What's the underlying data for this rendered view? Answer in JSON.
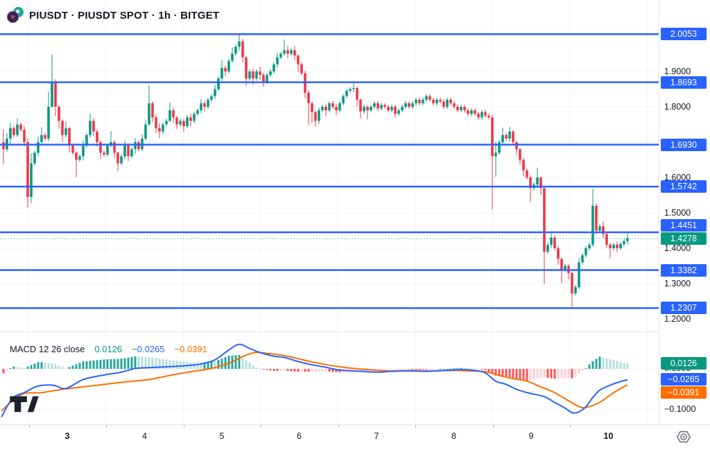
{
  "header": {
    "symbol_title": "PIUSDT · PIUSDT SPOT · 1h · BITGET",
    "logo_icon": "pi-coin-icon"
  },
  "colors": {
    "up": "#089981",
    "down": "#f23645",
    "level_line": "#2962ff",
    "grid": "#f0f3fa",
    "text": "#131722",
    "axis_border": "#e0e3eb",
    "macd_line": "#2962ff",
    "signal_line": "#ff6d00",
    "hist_pos": "#26a69a",
    "hist_pos_weak": "#b2dfdb",
    "hist_neg": "#ff5252",
    "hist_neg_weak": "#ffcdd2",
    "current_price": "#089981",
    "badge_text": "#ffffff"
  },
  "chart_data": [
    {
      "type": "candlestick",
      "pane": "price",
      "interval": "1h",
      "exchange": "BITGET",
      "symbol": "PIUSDT",
      "price_axis_ticks": [
        {
          "label": "1.9000",
          "price": 1.9
        },
        {
          "label": "1.8000",
          "price": 1.8
        },
        {
          "label": "1.6000",
          "price": 1.6
        },
        {
          "label": "1.5000",
          "price": 1.5
        },
        {
          "label": "1.4000",
          "price": 1.4
        },
        {
          "label": "1.3000",
          "price": 1.3
        },
        {
          "label": "1.2000",
          "price": 1.2
        }
      ],
      "level_lines": [
        {
          "label": "2.0053",
          "price": 2.0053
        },
        {
          "label": "1.8693",
          "price": 1.8693
        },
        {
          "label": "1.6930",
          "price": 1.693
        },
        {
          "label": "1.5742",
          "price": 1.5742
        },
        {
          "label": "1.4451",
          "price": 1.4451
        },
        {
          "label": "1.3382",
          "price": 1.3382
        },
        {
          "label": "1.2307",
          "price": 1.2307
        }
      ],
      "current_price": {
        "label": "1.4278",
        "price": 1.4278
      },
      "time_axis_labels": [
        {
          "label": "3",
          "bold": true
        },
        {
          "label": "4",
          "bold": false
        },
        {
          "label": "5",
          "bold": false
        },
        {
          "label": "6",
          "bold": false
        },
        {
          "label": "7",
          "bold": false
        },
        {
          "label": "8",
          "bold": false
        },
        {
          "label": "9",
          "bold": false
        },
        {
          "label": "10",
          "bold": true
        }
      ],
      "first_open": 1.7,
      "candles": [
        [
          1.68,
          1.735,
          1.638
        ],
        [
          1.71,
          1.725,
          1.672
        ],
        [
          1.74,
          1.755,
          1.695
        ],
        1.72,
        [
          1.75,
          1.768,
          1.715
        ],
        1.735,
        [
          1.7,
          1.745,
          1.688
        ],
        [
          1.545,
          1.71,
          1.515
        ],
        [
          1.64,
          1.668,
          1.528
        ],
        1.67,
        [
          1.7,
          1.716,
          1.66
        ],
        [
          1.72,
          1.742,
          1.695
        ],
        1.71,
        [
          1.8,
          1.843,
          1.703
        ],
        [
          1.87,
          1.947,
          1.798
        ],
        [
          1.8,
          1.878,
          1.775
        ],
        [
          1.76,
          1.803,
          1.738
        ],
        [
          1.72,
          1.764,
          1.7
        ],
        [
          1.74,
          1.758,
          1.712
        ],
        [
          1.69,
          1.742,
          1.672
        ],
        1.67,
        [
          1.65,
          1.675,
          1.601
        ],
        1.66,
        [
          1.69,
          1.705,
          1.648
        ],
        1.72,
        [
          1.76,
          1.781,
          1.713
        ],
        [
          1.73,
          1.768,
          1.718
        ],
        [
          1.7,
          1.736,
          1.688
        ],
        [
          1.67,
          1.705,
          1.653
        ],
        1.665,
        1.69,
        [
          1.7,
          1.731,
          1.685
        ],
        [
          1.67,
          1.706,
          1.655
        ],
        [
          1.64,
          1.673,
          1.618
        ],
        1.66,
        [
          1.69,
          1.703,
          1.652
        ],
        [
          1.66,
          1.697,
          1.647
        ],
        1.68,
        [
          1.7,
          1.712,
          1.668
        ],
        1.68,
        [
          1.71,
          1.722,
          1.675
        ],
        [
          1.75,
          1.762,
          1.706
        ],
        [
          1.81,
          1.861,
          1.746
        ],
        [
          1.77,
          1.815,
          1.757
        ],
        [
          1.74,
          1.778,
          1.726
        ],
        [
          1.73,
          1.753,
          1.711
        ],
        1.75,
        1.76,
        [
          1.79,
          1.812,
          1.757
        ],
        [
          1.77,
          1.798,
          1.754
        ],
        [
          1.75,
          1.774,
          1.737
        ],
        1.76,
        [
          1.745,
          1.766,
          1.728
        ],
        1.77,
        [
          1.76,
          1.781,
          1.745
        ],
        1.78,
        1.79,
        [
          1.81,
          1.822,
          1.782
        ],
        [
          1.8,
          1.817,
          1.786
        ],
        1.82,
        1.83,
        [
          1.85,
          1.862,
          1.822
        ],
        1.88,
        [
          1.91,
          1.931,
          1.873
        ],
        [
          1.9,
          1.917,
          1.886
        ],
        1.93,
        [
          1.95,
          1.968,
          1.924
        ],
        1.97,
        [
          1.985,
          2.005,
          1.958
        ],
        [
          1.94,
          1.992,
          1.925
        ],
        [
          1.88,
          1.943,
          1.859
        ],
        1.9,
        [
          1.88,
          1.908,
          1.862
        ],
        1.9,
        [
          1.89,
          1.914,
          1.876
        ],
        [
          1.87,
          1.896,
          1.857
        ],
        1.89,
        1.9,
        1.92,
        [
          1.94,
          1.953,
          1.911
        ],
        1.95,
        [
          1.96,
          1.99,
          1.944
        ],
        [
          1.95,
          1.973,
          1.937
        ],
        1.96,
        [
          1.945,
          1.972,
          1.932
        ],
        [
          1.92,
          1.948,
          1.899
        ],
        1.895,
        [
          1.84,
          1.902,
          1.824
        ],
        [
          1.81,
          1.846,
          1.749
        ],
        [
          1.785,
          1.814,
          1.754
        ],
        [
          1.76,
          1.789,
          1.744
        ],
        [
          1.79,
          1.798,
          1.751
        ],
        1.8,
        [
          1.79,
          1.809,
          1.774
        ],
        1.81,
        1.8,
        [
          1.79,
          1.808,
          1.776
        ],
        1.81,
        1.83,
        1.845,
        1.85,
        [
          1.853,
          1.8685,
          1.841
        ],
        [
          1.82,
          1.857,
          1.801
        ],
        [
          1.787,
          1.823,
          1.768
        ],
        1.8,
        [
          1.79,
          1.804,
          1.764
        ],
        1.8,
        1.81,
        1.795,
        1.805,
        1.8,
        1.79,
        1.8,
        [
          1.78,
          1.806,
          1.77
        ],
        1.79,
        1.8,
        1.81,
        1.8,
        1.81,
        1.82,
        1.81,
        1.82,
        1.83,
        1.82,
        1.81,
        1.82,
        1.815,
        1.8,
        1.82,
        1.81,
        1.8,
        1.79,
        1.8,
        1.79,
        1.78,
        1.79,
        1.78,
        1.77,
        1.785,
        1.775,
        1.77,
        [
          1.66,
          1.778,
          1.51
        ],
        [
          1.67,
          1.701,
          1.602
        ],
        1.7,
        [
          1.72,
          1.741,
          1.69
        ],
        1.71,
        [
          1.73,
          1.743,
          1.701
        ],
        [
          1.7,
          1.734,
          1.69
        ],
        [
          1.68,
          1.703,
          1.664
        ],
        [
          1.65,
          1.683,
          1.638
        ],
        [
          1.62,
          1.656,
          1.603
        ],
        1.6,
        [
          1.57,
          1.606,
          1.531
        ],
        1.58,
        [
          1.6,
          1.628,
          1.571
        ],
        [
          1.57,
          1.602,
          1.551
        ],
        [
          1.39,
          1.572,
          1.298
        ],
        1.41,
        [
          1.43,
          1.447,
          1.401
        ],
        1.4,
        [
          1.37,
          1.406,
          1.353
        ],
        [
          1.34,
          1.373,
          1.301
        ],
        1.35,
        [
          1.33,
          1.356,
          1.312
        ],
        [
          1.272,
          1.334,
          1.232
        ],
        1.29,
        [
          1.36,
          1.371,
          1.284
        ],
        1.38,
        1.4,
        1.41,
        [
          1.52,
          1.568,
          1.404
        ],
        [
          1.45,
          1.527,
          1.441
        ],
        1.462,
        [
          1.44,
          1.476,
          1.429
        ],
        [
          1.41,
          1.446,
          1.401
        ],
        [
          1.4,
          1.416,
          1.371
        ],
        1.41,
        [
          1.4,
          1.419,
          1.389
        ],
        1.412,
        1.42,
        [
          1.428,
          1.446,
          1.411
        ]
      ]
    },
    {
      "type": "macd",
      "pane": "macd",
      "legend": {
        "title": "MACD 12 26 close",
        "hist_value": "0.0126",
        "macd_value": "−0.0265",
        "signal_value": "−0.0391"
      },
      "axis_ticks": [
        {
          "label": "0.0000",
          "value": 0
        },
        {
          "label": "−0.1000",
          "value": -0.1
        }
      ],
      "value_badges": [
        {
          "label": "0.0126",
          "value": 0.0126,
          "series": "hist",
          "fixed": true
        },
        {
          "label": "−0.0265",
          "value": -0.0265,
          "series": "macd",
          "fixed": true
        },
        {
          "label": "−0.0391",
          "value": -0.0391,
          "series": "signal",
          "fixed": false
        }
      ],
      "macd_line": [
        [
          2,
          -0.118
        ],
        [
          18,
          -0.072
        ],
        [
          35,
          -0.058
        ],
        [
          55,
          -0.042
        ],
        [
          77,
          -0.04
        ],
        [
          95,
          -0.048
        ],
        [
          120,
          -0.026
        ],
        [
          150,
          -0.015
        ],
        [
          175,
          -0.008
        ],
        [
          195,
          0.001
        ],
        [
          215,
          0.003
        ],
        [
          240,
          0.005
        ],
        [
          270,
          0.008
        ],
        [
          290,
          0.012
        ],
        [
          310,
          0.022
        ],
        [
          330,
          0.046
        ],
        [
          345,
          0.06
        ],
        [
          360,
          0.05
        ],
        [
          375,
          0.04
        ],
        [
          395,
          0.031
        ],
        [
          410,
          0.028
        ],
        [
          430,
          0.018
        ],
        [
          450,
          0.01
        ],
        [
          470,
          0.004
        ],
        [
          490,
          -0.003
        ],
        [
          520,
          -0.006
        ],
        [
          545,
          -0.008
        ],
        [
          565,
          -0.006
        ],
        [
          590,
          -0.005
        ],
        [
          615,
          -0.006
        ],
        [
          640,
          -0.004
        ],
        [
          665,
          -0.002
        ],
        [
          685,
          -0.004
        ],
        [
          700,
          -0.01
        ],
        [
          715,
          -0.03
        ],
        [
          730,
          -0.038
        ],
        [
          745,
          -0.05
        ],
        [
          760,
          -0.058
        ],
        [
          785,
          -0.068
        ],
        [
          800,
          -0.082
        ],
        [
          815,
          -0.096
        ],
        [
          828,
          -0.108
        ],
        [
          843,
          -0.096
        ],
        [
          855,
          -0.07
        ],
        [
          865,
          -0.052
        ],
        [
          880,
          -0.04
        ],
        [
          893,
          -0.032
        ],
        [
          905,
          -0.0265
        ]
      ],
      "signal_line": [
        [
          2,
          -0.103
        ],
        [
          18,
          -0.078
        ],
        [
          35,
          -0.06
        ],
        [
          60,
          -0.058
        ],
        [
          90,
          -0.05
        ],
        [
          120,
          -0.044
        ],
        [
          150,
          -0.038
        ],
        [
          180,
          -0.032
        ],
        [
          215,
          -0.026
        ],
        [
          245,
          -0.016
        ],
        [
          275,
          -0.007
        ],
        [
          305,
          0.001
        ],
        [
          330,
          0.014
        ],
        [
          350,
          0.03
        ],
        [
          368,
          0.04
        ],
        [
          385,
          0.038
        ],
        [
          405,
          0.034
        ],
        [
          425,
          0.027
        ],
        [
          450,
          0.017
        ],
        [
          475,
          0.009
        ],
        [
          500,
          0.003
        ],
        [
          530,
          -0.002
        ],
        [
          560,
          -0.005
        ],
        [
          590,
          -0.004
        ],
        [
          620,
          -0.005
        ],
        [
          650,
          -0.004
        ],
        [
          680,
          -0.005
        ],
        [
          700,
          -0.007
        ],
        [
          720,
          -0.016
        ],
        [
          740,
          -0.024
        ],
        [
          760,
          -0.03
        ],
        [
          780,
          -0.044
        ],
        [
          800,
          -0.058
        ],
        [
          820,
          -0.078
        ],
        [
          838,
          -0.094
        ],
        [
          850,
          -0.092
        ],
        [
          865,
          -0.082
        ],
        [
          880,
          -0.064
        ],
        [
          893,
          -0.05
        ],
        [
          905,
          -0.0391
        ]
      ]
    }
  ],
  "footer": {
    "watermark_icon": "tradingview-logo-icon",
    "axis_button_icon": "hexagon-eye-icon"
  }
}
